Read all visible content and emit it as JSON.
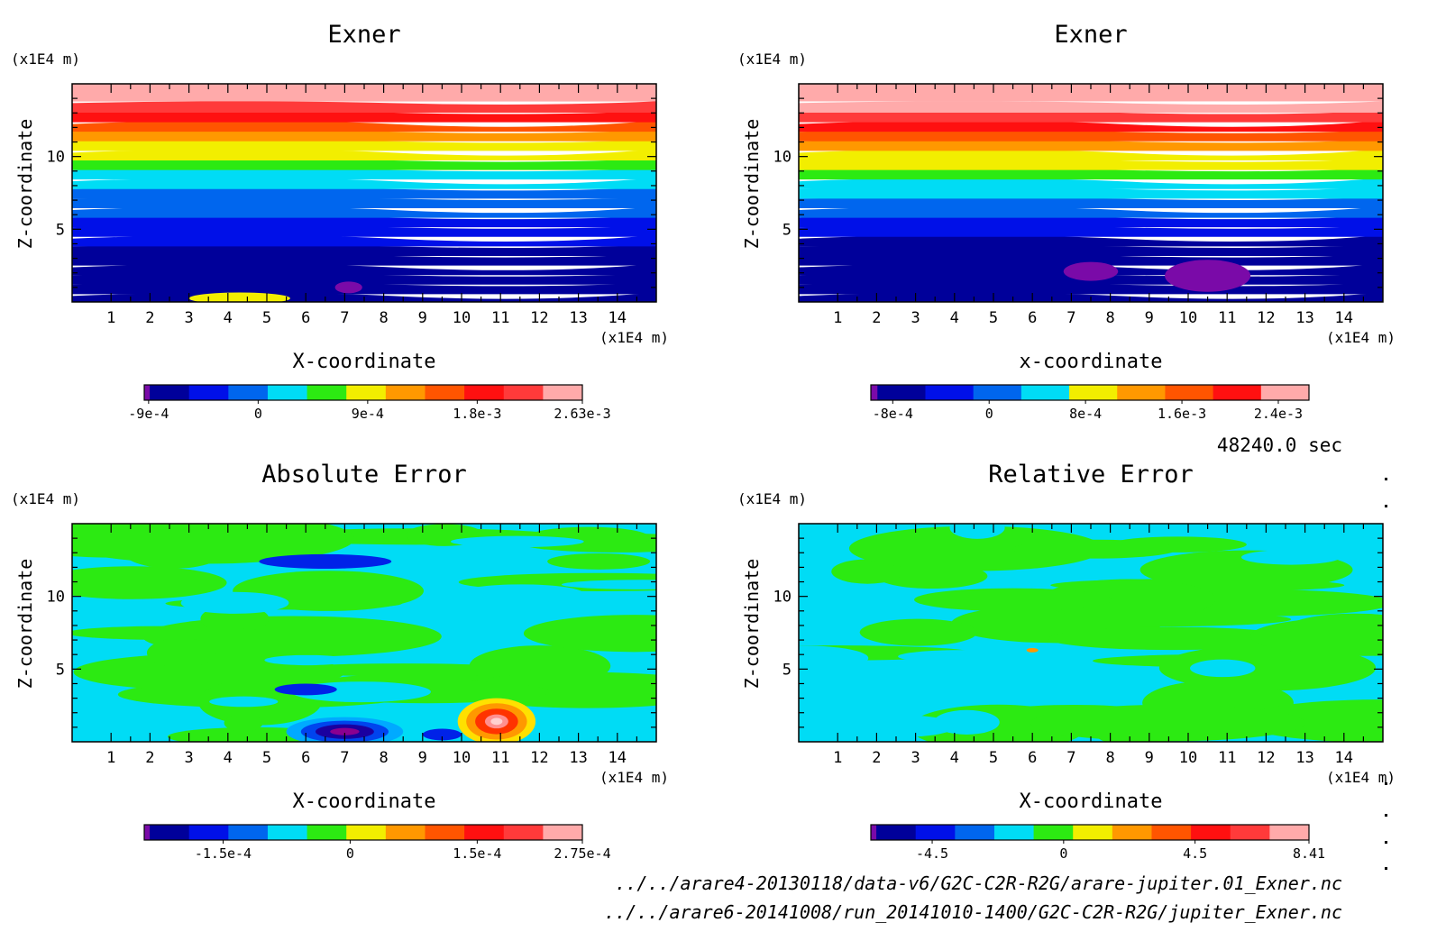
{
  "colors": {
    "ramp": [
      "#7a0aa8",
      "#00009a",
      "#0010e8",
      "#0066ee",
      "#00dcf5",
      "#2cea12",
      "#f2ee00",
      "#ff9800",
      "#ff5500",
      "#ff1010",
      "#ff3a3a",
      "#ffaaaa"
    ],
    "anomaly_low": "#b4b4ff",
    "anomaly_high": "#ffb4b4"
  },
  "chart_data": [
    {
      "type": "heatmap",
      "title": "Exner",
      "xlabel": "X-coordinate",
      "ylabel": "Z-coordinate",
      "x_unit": "(x1E4 m)",
      "y_unit": "(x1E4 m)",
      "x_ticks": [
        "1",
        "2",
        "3",
        "4",
        "5",
        "6",
        "7",
        "8",
        "9",
        "10",
        "11",
        "12",
        "13",
        "14"
      ],
      "y_ticks": [
        "5",
        "10"
      ],
      "xlim": [
        0,
        15
      ],
      "ylim": [
        0,
        15
      ],
      "field": "stratified",
      "z_top_level": 10,
      "layer_levels": [
        1,
        1,
        1,
        1,
        1,
        1,
        2,
        2,
        2,
        3,
        3,
        3,
        4,
        4,
        5,
        6,
        6,
        7,
        8,
        9,
        10
      ],
      "colorbar_ticks": [
        "-9e-4",
        "0",
        "9e-4",
        "1.8e-3",
        "2.63e-3"
      ],
      "colorbar_tick_positions": [
        0.01,
        0.26,
        0.51,
        0.76,
        1.0
      ],
      "colorbar_colors": [
        0,
        1,
        2,
        3,
        4,
        5,
        6,
        7,
        8,
        9,
        10,
        11
      ],
      "anomalies": [
        {
          "x": 7.1,
          "z": 1.0,
          "rx": 0.35,
          "rz": 0.4,
          "level": 0
        },
        {
          "x": 4.3,
          "z": 0.25,
          "rx": 1.3,
          "rz": 0.4,
          "level": 2
        }
      ]
    },
    {
      "type": "heatmap",
      "title": "Exner",
      "xlabel": "x-coordinate",
      "ylabel": "Z-coordinate",
      "x_unit": "(x1E4 m)",
      "y_unit": "(x1E4 m)",
      "x_ticks": [
        "1",
        "2",
        "3",
        "4",
        "5",
        "6",
        "7",
        "8",
        "9",
        "10",
        "11",
        "12",
        "13",
        "14"
      ],
      "y_ticks": [
        "5",
        "10"
      ],
      "xlim": [
        0,
        15
      ],
      "ylim": [
        0,
        15
      ],
      "field": "stratified",
      "z_top_level": 11,
      "layer_levels": [
        1,
        1,
        1,
        1,
        1,
        1,
        1,
        2,
        2,
        3,
        3,
        4,
        4,
        5,
        6,
        6,
        7,
        8,
        9,
        10,
        11
      ],
      "colorbar_ticks": [
        "-8e-4",
        "0",
        "8e-4",
        "1.6e-3",
        "2.4e-3"
      ],
      "colorbar_tick_positions": [
        0.05,
        0.27,
        0.49,
        0.71,
        0.93
      ],
      "colorbar_colors": [
        0,
        1,
        2,
        3,
        4,
        6,
        7,
        8,
        9,
        11
      ],
      "anomalies": [
        {
          "x": 7.5,
          "z": 2.1,
          "rx": 0.7,
          "rz": 0.65,
          "level": 0
        },
        {
          "x": 10.5,
          "z": 1.8,
          "rx": 1.1,
          "rz": 1.1,
          "level": 0
        }
      ]
    },
    {
      "type": "heatmap",
      "title": "Absolute Error",
      "xlabel": "X-coordinate",
      "ylabel": "Z-coordinate",
      "x_unit": "(x1E4 m)",
      "y_unit": "(x1E4 m)",
      "x_ticks": [
        "1",
        "2",
        "3",
        "4",
        "5",
        "6",
        "7",
        "8",
        "9",
        "10",
        "11",
        "12",
        "13",
        "14"
      ],
      "y_ticks": [
        "5",
        "10"
      ],
      "xlim": [
        0,
        15
      ],
      "ylim": [
        0,
        15
      ],
      "field": "noise",
      "noise_seed": 3,
      "threshold": 0.0,
      "colorbar_ticks": [
        "-1.5e-4",
        "0",
        "1.5e-4",
        "2.75e-4"
      ],
      "colorbar_tick_positions": [
        0.18,
        0.47,
        0.76,
        1.0
      ],
      "colorbar_colors": [
        0,
        1,
        2,
        3,
        4,
        5,
        6,
        7,
        8,
        9,
        10,
        11
      ],
      "anomalies": [
        {
          "x": 7.0,
          "z": 0.7,
          "rx": 1.5,
          "rz": 1.0,
          "level": -4
        },
        {
          "x": 10.9,
          "z": 1.4,
          "rx": 1.0,
          "rz": 1.6,
          "level": 5
        },
        {
          "x": 4.4,
          "z": 1.3,
          "rx": 0.5,
          "rz": 0.6,
          "level": 1
        },
        {
          "x": 6.5,
          "z": 12.4,
          "rx": 1.7,
          "rz": 0.5,
          "level": -2
        },
        {
          "x": 6.0,
          "z": 3.6,
          "rx": 0.8,
          "rz": 0.4,
          "level": -2
        },
        {
          "x": 9.5,
          "z": 0.5,
          "rx": 0.5,
          "rz": 0.4,
          "level": -2
        }
      ]
    },
    {
      "type": "heatmap",
      "title": "Relative Error",
      "xlabel": "X-coordinate",
      "ylabel": "Z-coordinate",
      "x_unit": "(x1E4 m)",
      "y_unit": "(x1E4 m)",
      "x_ticks": [
        "1",
        "2",
        "3",
        "4",
        "5",
        "6",
        "7",
        "8",
        "9",
        "10",
        "11",
        "12",
        "13",
        "14"
      ],
      "y_ticks": [
        "5",
        "10"
      ],
      "xlim": [
        0,
        15
      ],
      "ylim": [
        0,
        15
      ],
      "field": "noise",
      "noise_seed": 11,
      "threshold": 0.0,
      "colorbar_ticks": [
        "-4.5",
        "0",
        "4.5",
        "8.41"
      ],
      "colorbar_tick_positions": [
        0.14,
        0.44,
        0.74,
        1.0
      ],
      "colorbar_colors": [
        0,
        1,
        2,
        3,
        4,
        5,
        6,
        7,
        8,
        9,
        10,
        11
      ],
      "anomalies": [
        {
          "x": 6.0,
          "z": 6.3,
          "rx": 0.15,
          "rz": 0.15,
          "level": 3
        }
      ]
    }
  ],
  "footer": {
    "time": "48240.0 sec",
    "file1": "../../arare4-20130118/data-v6/G2C-C2R-R2G/arare-jupiter.01_Exner.nc",
    "file2": "../../arare6-20141008/run_20141010-1400/G2C-C2R-R2G/jupiter_Exner.nc"
  }
}
